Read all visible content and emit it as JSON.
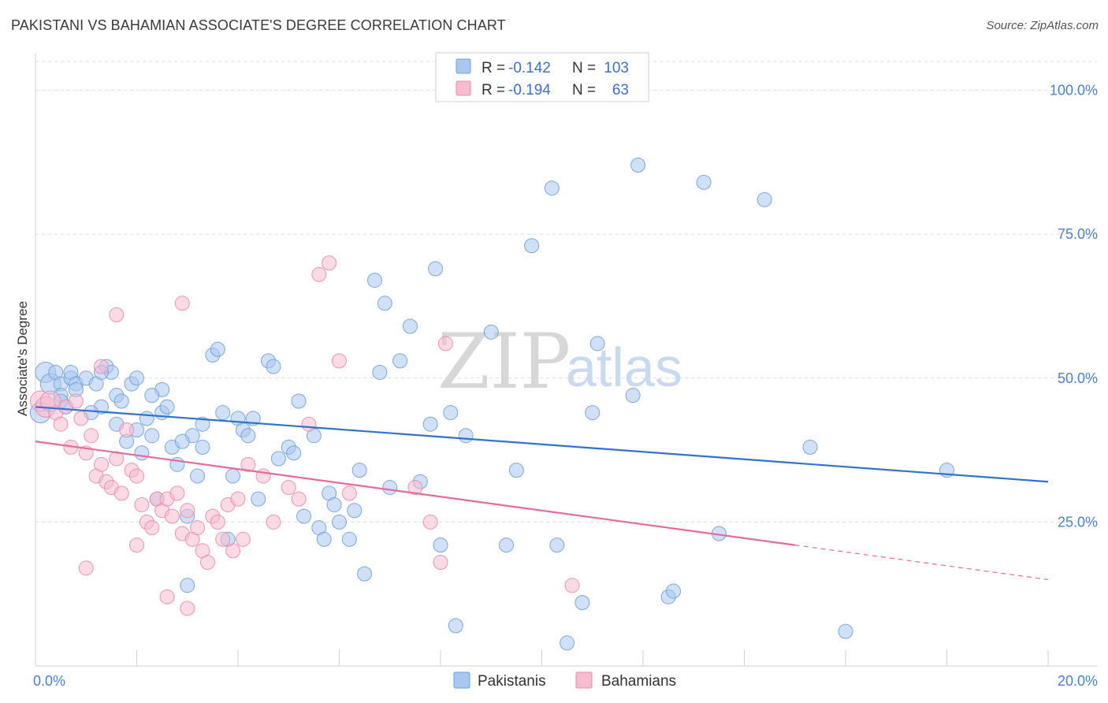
{
  "header": {
    "title": "PAKISTANI VS BAHAMIAN ASSOCIATE'S DEGREE CORRELATION CHART",
    "source": "Source: ZipAtlas.com"
  },
  "watermark": {
    "zip": "ZIP",
    "atlas": "atlas"
  },
  "legend": {
    "rows": [
      {
        "r_label": "R =",
        "r_value": "-0.142",
        "n_label": "N =",
        "n_value": "103"
      },
      {
        "r_label": "R =",
        "r_value": "-0.194",
        "n_label": "N =",
        "n_value": "63"
      }
    ]
  },
  "bottom_legend": {
    "series1": "Pakistanis",
    "series2": "Bahamians"
  },
  "colors": {
    "pakistanis_fill": "#a9c8f0",
    "pakistanis_stroke": "#6f9fdc",
    "pakistanis_line": "#2f72d0",
    "bahamians_fill": "#f6bcd0",
    "bahamians_stroke": "#ec8aab",
    "bahamians_line": "#e8699a",
    "grid": "#dcdcdc",
    "tick_text": "#4a7fd4"
  },
  "chart_data": {
    "type": "scatter",
    "title": "PAKISTANI VS BAHAMIAN ASSOCIATE'S DEGREE CORRELATION CHART",
    "xlabel": "",
    "ylabel": "Associate's Degree",
    "xlim": [
      0,
      20
    ],
    "ylim": [
      0,
      105
    ],
    "x_tick_labels": [
      "0.0%",
      "20.0%"
    ],
    "y_ticks": [
      25,
      50,
      75,
      100
    ],
    "y_tick_labels": [
      "25.0%",
      "50.0%",
      "75.0%",
      "100.0%"
    ],
    "series": [
      {
        "name": "Pakistanis",
        "r": -0.142,
        "n": 103,
        "trend": {
          "x0": 0,
          "y0": 45.0,
          "x1": 20,
          "y1": 32.0
        },
        "points": [
          [
            0.1,
            44
          ],
          [
            0.2,
            51
          ],
          [
            0.3,
            49
          ],
          [
            0.4,
            51
          ],
          [
            0.5,
            49
          ],
          [
            0.5,
            47
          ],
          [
            0.6,
            45
          ],
          [
            0.7,
            50
          ],
          [
            0.7,
            51
          ],
          [
            0.8,
            49
          ],
          [
            1.0,
            50
          ],
          [
            1.2,
            49
          ],
          [
            1.3,
            45
          ],
          [
            1.4,
            52
          ],
          [
            1.5,
            51
          ],
          [
            1.6,
            47
          ],
          [
            1.7,
            46
          ],
          [
            1.8,
            39
          ],
          [
            1.9,
            49
          ],
          [
            2.0,
            50
          ],
          [
            2.1,
            37
          ],
          [
            2.2,
            43
          ],
          [
            2.3,
            40
          ],
          [
            2.5,
            48
          ],
          [
            2.5,
            44
          ],
          [
            2.7,
            38
          ],
          [
            2.8,
            35
          ],
          [
            3.0,
            26
          ],
          [
            3.0,
            14
          ],
          [
            3.1,
            40
          ],
          [
            3.2,
            33
          ],
          [
            3.3,
            38
          ],
          [
            3.5,
            54
          ],
          [
            3.6,
            55
          ],
          [
            3.8,
            22
          ],
          [
            4.0,
            43
          ],
          [
            4.1,
            41
          ],
          [
            4.3,
            43
          ],
          [
            4.4,
            29
          ],
          [
            4.6,
            53
          ],
          [
            4.8,
            36
          ],
          [
            5.0,
            38
          ],
          [
            5.2,
            46
          ],
          [
            5.3,
            26
          ],
          [
            5.5,
            40
          ],
          [
            5.6,
            24
          ],
          [
            5.7,
            22
          ],
          [
            5.8,
            30
          ],
          [
            6.0,
            25
          ],
          [
            6.2,
            22
          ],
          [
            6.3,
            27
          ],
          [
            6.5,
            16
          ],
          [
            6.7,
            67
          ],
          [
            6.8,
            51
          ],
          [
            6.9,
            63
          ],
          [
            7.0,
            31
          ],
          [
            7.2,
            53
          ],
          [
            7.4,
            59
          ],
          [
            7.6,
            32
          ],
          [
            7.8,
            42
          ],
          [
            7.9,
            69
          ],
          [
            8.0,
            21
          ],
          [
            8.2,
            44
          ],
          [
            8.3,
            7
          ],
          [
            8.5,
            40
          ],
          [
            9.0,
            58
          ],
          [
            9.3,
            21
          ],
          [
            9.5,
            34
          ],
          [
            9.8,
            73
          ],
          [
            10.2,
            83
          ],
          [
            10.3,
            21
          ],
          [
            10.5,
            4
          ],
          [
            10.8,
            11
          ],
          [
            11.0,
            44
          ],
          [
            11.1,
            56
          ],
          [
            11.8,
            47
          ],
          [
            11.9,
            87
          ],
          [
            12.5,
            12
          ],
          [
            12.6,
            13
          ],
          [
            13.2,
            84
          ],
          [
            13.5,
            23
          ],
          [
            14.4,
            81
          ],
          [
            15.3,
            38
          ],
          [
            18.0,
            34
          ],
          [
            16.0,
            6
          ],
          [
            0.5,
            46
          ],
          [
            0.8,
            48
          ],
          [
            1.1,
            44
          ],
          [
            1.3,
            51
          ],
          [
            1.6,
            42
          ],
          [
            2.0,
            41
          ],
          [
            2.3,
            47
          ],
          [
            2.6,
            45
          ],
          [
            2.9,
            39
          ],
          [
            3.3,
            42
          ],
          [
            3.7,
            44
          ],
          [
            4.2,
            40
          ],
          [
            4.7,
            52
          ],
          [
            5.1,
            37
          ],
          [
            5.9,
            28
          ],
          [
            6.4,
            34
          ],
          [
            2.4,
            29
          ],
          [
            3.9,
            33
          ]
        ]
      },
      {
        "name": "Bahamians",
        "r": -0.194,
        "n": 63,
        "trend": {
          "x0": 0,
          "y0": 39.0,
          "x1": 15,
          "y1": 21.0,
          "dashed_to_x": 20,
          "dashed_to_y": 15.0
        },
        "points": [
          [
            0.1,
            46
          ],
          [
            0.2,
            45
          ],
          [
            0.3,
            46
          ],
          [
            0.4,
            44
          ],
          [
            0.5,
            42
          ],
          [
            0.6,
            45
          ],
          [
            0.7,
            38
          ],
          [
            0.8,
            46
          ],
          [
            0.9,
            43
          ],
          [
            1.0,
            37
          ],
          [
            1.1,
            40
          ],
          [
            1.2,
            33
          ],
          [
            1.3,
            35
          ],
          [
            1.4,
            32
          ],
          [
            1.5,
            31
          ],
          [
            1.6,
            36
          ],
          [
            1.7,
            30
          ],
          [
            1.8,
            41
          ],
          [
            1.9,
            34
          ],
          [
            2.0,
            33
          ],
          [
            2.1,
            28
          ],
          [
            2.2,
            25
          ],
          [
            2.3,
            24
          ],
          [
            2.4,
            29
          ],
          [
            2.5,
            27
          ],
          [
            2.6,
            29
          ],
          [
            2.7,
            26
          ],
          [
            2.8,
            30
          ],
          [
            2.9,
            23
          ],
          [
            3.0,
            27
          ],
          [
            3.1,
            22
          ],
          [
            3.2,
            24
          ],
          [
            3.3,
            20
          ],
          [
            3.4,
            18
          ],
          [
            3.5,
            26
          ],
          [
            3.6,
            25
          ],
          [
            3.7,
            22
          ],
          [
            3.8,
            28
          ],
          [
            3.9,
            20
          ],
          [
            4.0,
            29
          ],
          [
            4.1,
            22
          ],
          [
            1.6,
            61
          ],
          [
            2.9,
            63
          ],
          [
            4.2,
            35
          ],
          [
            4.5,
            33
          ],
          [
            4.7,
            25
          ],
          [
            5.0,
            31
          ],
          [
            5.2,
            29
          ],
          [
            5.4,
            42
          ],
          [
            5.6,
            68
          ],
          [
            5.8,
            70
          ],
          [
            6.0,
            53
          ],
          [
            6.2,
            30
          ],
          [
            7.5,
            31
          ],
          [
            7.8,
            25
          ],
          [
            8.0,
            18
          ],
          [
            8.1,
            56
          ],
          [
            10.6,
            14
          ],
          [
            1.3,
            52
          ],
          [
            1.0,
            17
          ],
          [
            2.6,
            12
          ],
          [
            3.0,
            10
          ],
          [
            2.0,
            21
          ]
        ]
      }
    ]
  }
}
